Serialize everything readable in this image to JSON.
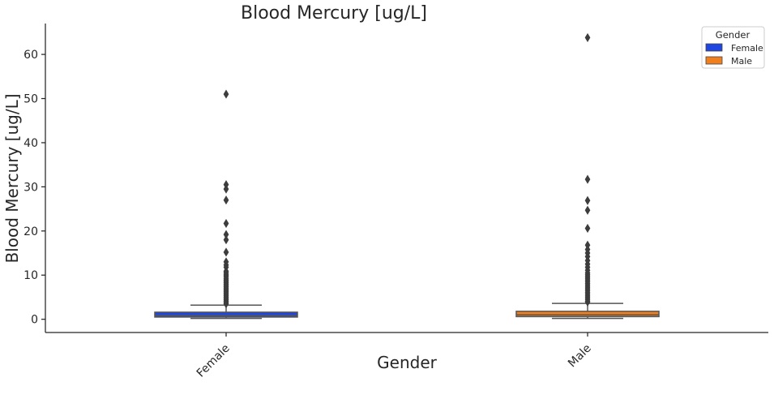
{
  "chart_data": {
    "type": "box",
    "title": "Blood Mercury [ug/L]",
    "xlabel": "Gender",
    "ylabel": "Blood Mercury [ug/L]",
    "categories": [
      "Female",
      "Male"
    ],
    "ylim": [
      -3,
      67
    ],
    "yticks": [
      0,
      10,
      20,
      30,
      40,
      50,
      60
    ],
    "grid": false,
    "legend": {
      "title": "Gender",
      "placement": "top-right",
      "entries": [
        {
          "label": "Female",
          "color": "#1f46e0"
        },
        {
          "label": "Male",
          "color": "#f07f1e"
        }
      ]
    },
    "series": [
      {
        "category": "Female",
        "color": "#1f46e0",
        "whisker_low": 0.2,
        "q1": 0.5,
        "median": 0.9,
        "q3": 1.6,
        "whisker_high": 3.2,
        "outliers": [
          51.0,
          30.5,
          29.5,
          27.0,
          21.7,
          19.2,
          18.0,
          15.2,
          13.0,
          12.3,
          11.8,
          10.9,
          10.6,
          10.2,
          9.9,
          9.6,
          9.2,
          8.9,
          8.6,
          8.3,
          8.0,
          7.7,
          7.4,
          7.1,
          6.8,
          6.5,
          6.2,
          5.9,
          5.6,
          5.3,
          5.0,
          4.7,
          4.4,
          4.1,
          3.8,
          3.5
        ]
      },
      {
        "category": "Male",
        "color": "#f07f1e",
        "whisker_low": 0.2,
        "q1": 0.6,
        "median": 1.0,
        "q3": 1.8,
        "whisker_high": 3.6,
        "outliers": [
          63.8,
          31.7,
          26.9,
          24.7,
          20.6,
          16.8,
          15.8,
          15.0,
          14.2,
          13.3,
          12.5,
          11.8,
          11.1,
          10.5,
          10.1,
          9.7,
          9.3,
          8.9,
          8.5,
          8.1,
          7.7,
          7.3,
          6.9,
          6.5,
          6.1,
          5.7,
          5.3,
          4.9,
          4.5,
          4.1,
          3.9
        ]
      }
    ]
  }
}
